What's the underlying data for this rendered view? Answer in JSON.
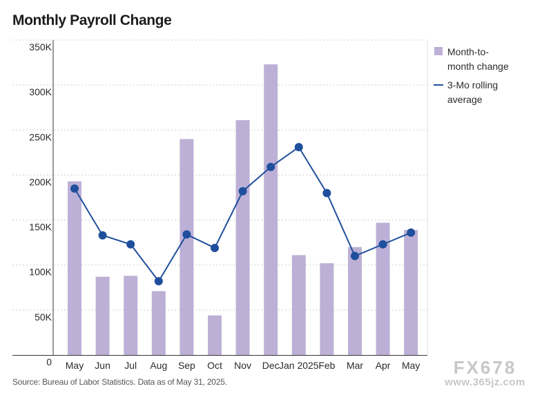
{
  "title": "Monthly Payroll Change",
  "source": "Source: Bureau of Labor Statistics. Data as of May 31, 2025.",
  "watermark": {
    "main": "FX678",
    "sub": "www.365jz.com"
  },
  "colors": {
    "bar": "#bdb0d6",
    "line": "#1f4f9c",
    "grid": "#cfcfcf",
    "axis": "#333333"
  },
  "chart_data": {
    "type": "bar",
    "categories": [
      "May",
      "Jun",
      "Jul",
      "Aug",
      "Sep",
      "Oct",
      "Nov",
      "Dec",
      "Jan 2025",
      "Feb",
      "Mar",
      "Apr",
      "May"
    ],
    "y_ticks": [
      "0",
      "50K",
      "100K",
      "150K",
      "200K",
      "250K",
      "300K",
      "350K"
    ],
    "ylim": [
      0,
      350000
    ],
    "grid": true,
    "legend_position": "right",
    "series": [
      {
        "name": "Month-to-month change",
        "type": "bar",
        "legend_lines": [
          "Month-to-",
          "month change"
        ],
        "values": [
          193000,
          87000,
          88000,
          71000,
          240000,
          44000,
          261000,
          323000,
          111000,
          102000,
          120000,
          147000,
          139000
        ]
      },
      {
        "name": "3-Mo rolling average",
        "type": "line",
        "legend_lines": [
          "3-Mo rolling",
          "average"
        ],
        "values": [
          185000,
          133000,
          123000,
          82000,
          134000,
          119000,
          182000,
          209000,
          231000,
          180000,
          110000,
          123000,
          136000
        ]
      }
    ]
  }
}
